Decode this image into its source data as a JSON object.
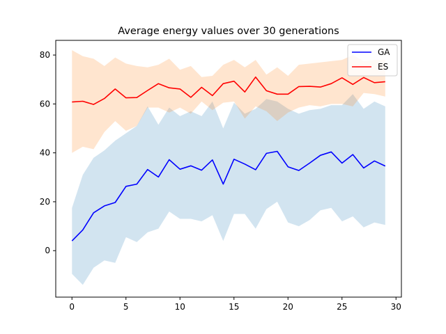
{
  "chart_data": {
    "type": "line",
    "title": "Average energy values over 30 generations",
    "xlabel": "",
    "ylabel": "",
    "xlim": [
      -1.5,
      30.5
    ],
    "ylim": [
      -19,
      86
    ],
    "xticks": [
      0,
      5,
      10,
      15,
      20,
      25,
      30
    ],
    "yticks": [
      0,
      20,
      40,
      60,
      80
    ],
    "grid": false,
    "legend": "top-right",
    "x": [
      0,
      1,
      2,
      3,
      4,
      5,
      6,
      7,
      8,
      9,
      10,
      11,
      12,
      13,
      14,
      15,
      16,
      17,
      18,
      19,
      20,
      21,
      22,
      23,
      24,
      25,
      26,
      27,
      28,
      29
    ],
    "series": [
      {
        "name": "GA",
        "color": "#0000ff",
        "band_color": "#1f77b4",
        "values": [
          4,
          8.5,
          15.5,
          18.3,
          19.7,
          26.3,
          27.2,
          33.2,
          30.1,
          37.2,
          33.3,
          34.7,
          32.9,
          37.1,
          27.2,
          37.4,
          35.4,
          33.1,
          39.8,
          40.6,
          34.3,
          32.8,
          35.8,
          39,
          40.4,
          35.8,
          39.3,
          33.8,
          36.7,
          34.6
        ],
        "band_upper": [
          17.5,
          31,
          38,
          41,
          45,
          48,
          51,
          59,
          51.5,
          58.5,
          55,
          57,
          55,
          61,
          50,
          60.5,
          56,
          58,
          62,
          61,
          58,
          56,
          57.5,
          58,
          59.5,
          59.5,
          64,
          58,
          61,
          59
        ],
        "band_lower": [
          -9.5,
          -14,
          -7,
          -4,
          -5,
          5.5,
          3.5,
          7.5,
          9,
          16,
          13,
          13,
          12,
          14.5,
          4,
          15,
          15,
          9,
          17,
          20,
          11.5,
          10,
          12.5,
          16.5,
          17.5,
          12,
          14,
          9.5,
          11.5,
          10.5
        ]
      },
      {
        "name": "ES",
        "color": "#ff0000",
        "band_color": "#ff7f0e",
        "values": [
          60.8,
          61.1,
          59.8,
          62.2,
          66.1,
          62.5,
          62.6,
          65.5,
          68.3,
          66.6,
          66.1,
          62.7,
          66.8,
          63.4,
          68.3,
          69.3,
          64.9,
          71,
          65.4,
          64,
          64,
          67.1,
          67.2,
          66.9,
          68.3,
          70.7,
          68,
          70.8,
          68.7,
          69.1
        ],
        "band_upper": [
          82,
          79.5,
          78.5,
          75.5,
          79,
          76.5,
          75.5,
          75,
          76,
          78.5,
          74,
          75.5,
          71,
          71.5,
          76,
          78,
          75,
          78,
          72,
          75,
          71.5,
          76,
          76.5,
          77,
          77.5,
          78,
          80,
          77.5,
          78,
          78
        ],
        "band_lower": [
          40,
          42.5,
          41.5,
          48.5,
          53,
          49,
          51,
          58.5,
          58.5,
          56.5,
          58.5,
          56,
          61,
          57.5,
          60.5,
          61,
          54,
          59,
          57,
          53,
          56.5,
          58.5,
          59.5,
          59,
          60,
          60,
          59,
          64.5,
          64,
          63
        ]
      }
    ]
  }
}
